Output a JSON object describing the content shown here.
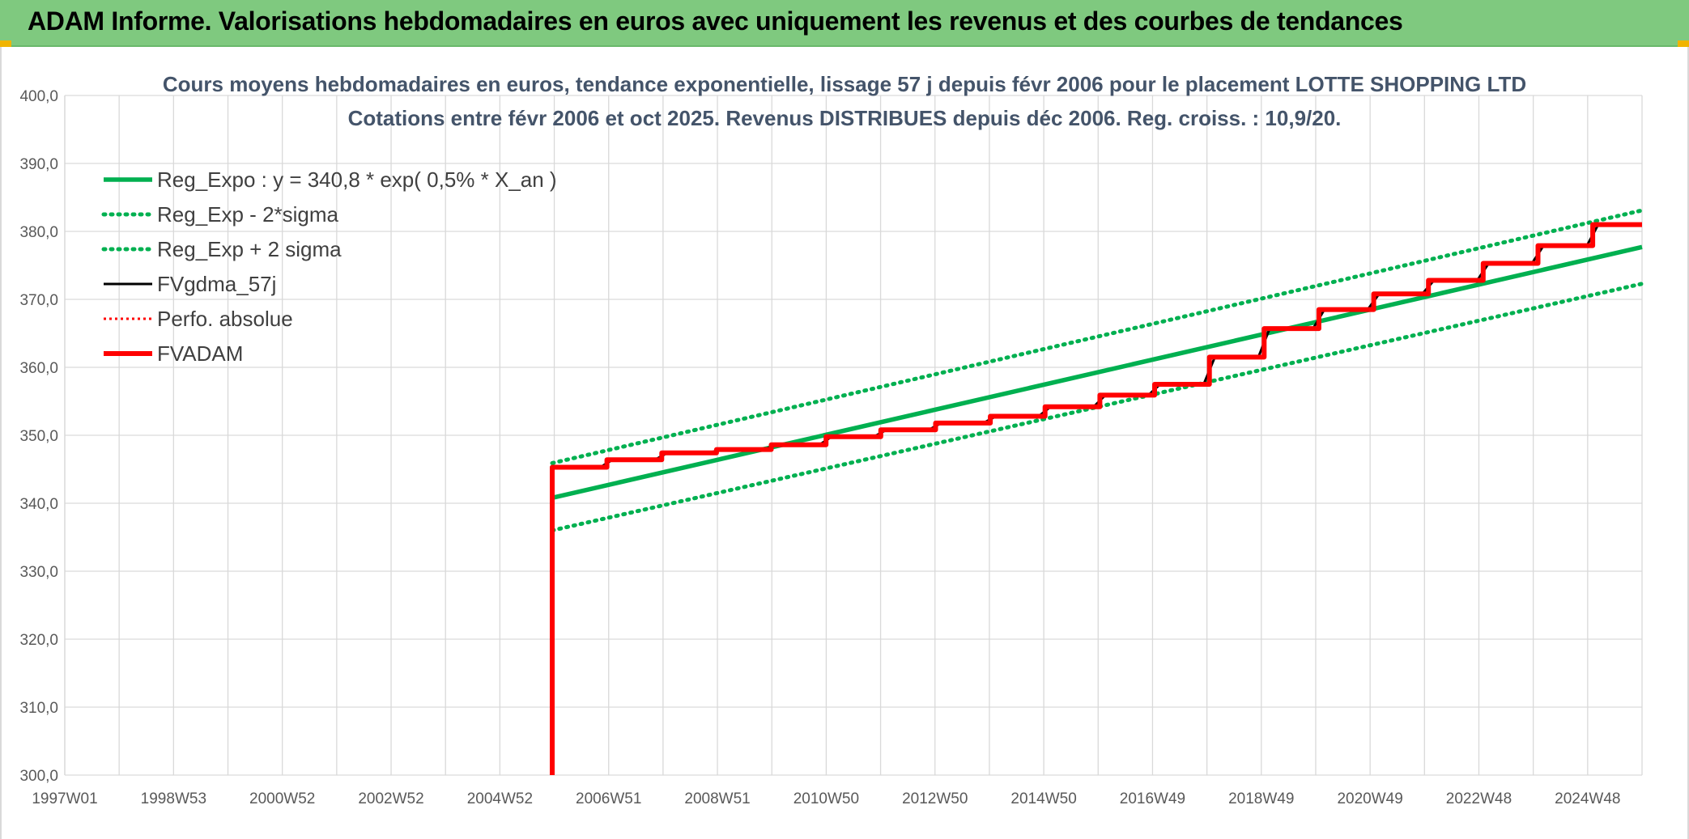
{
  "header": {
    "title": "ADAM Informe. Valorisations hebdomadaires en euros avec uniquement les revenus et des courbes de tendances",
    "background": "#7fc97f"
  },
  "chart_data": {
    "type": "line",
    "title": "Cours moyens hebdomadaires en euros, tendance exponentielle, lissage 57 j depuis févr 2006 pour le placement LOTTE SHOPPING LTD",
    "subtitle": "Cotations entre févr 2006 et oct 2025. Revenus DISTRIBUES depuis déc 2006. Reg. croiss. : 10,9/20.",
    "xlabel": "",
    "ylabel": "",
    "ylim": [
      300,
      400
    ],
    "xlim": [
      1997.0,
      2025.8
    ],
    "grid": true,
    "legend_position": "top-left",
    "y_ticks": [
      "400,0",
      "390,0",
      "380,0",
      "370,0",
      "360,0",
      "350,0",
      "340,0",
      "330,0",
      "320,0",
      "310,0",
      "300,0"
    ],
    "x_ticks": [
      "1997W01",
      "1998W53",
      "2000W52",
      "2002W52",
      "2004W52",
      "2006W51",
      "2008W51",
      "2010W50",
      "2012W50",
      "2014W50",
      "2016W49",
      "2018W49",
      "2020W49",
      "2022W48",
      "2024W48"
    ],
    "series": [
      {
        "name": "Reg_Expo : y = 340,8 * exp( 0,5% *  X_an )",
        "color": "#00b050",
        "style": "solid",
        "x": [
          2005.9,
          2025.8
        ],
        "y": [
          340.8,
          377.7
        ]
      },
      {
        "name": "Reg_Exp - 2*sigma",
        "color": "#00b050",
        "style": "dotted",
        "x": [
          2005.9,
          2025.8
        ],
        "y": [
          336.0,
          372.3
        ]
      },
      {
        "name": "Reg_Exp + 2 sigma",
        "color": "#00b050",
        "style": "dotted",
        "x": [
          2005.9,
          2025.8
        ],
        "y": [
          345.9,
          383.1
        ]
      },
      {
        "name": "FVgdma_57j",
        "color": "#000000",
        "style": "solid",
        "x": [
          2005.9,
          2006.8,
          2007.0,
          2007.8,
          2008.0,
          2008.8,
          2009.0,
          2009.8,
          2010.0,
          2010.8,
          2011.0,
          2011.8,
          2012.0,
          2012.8,
          2013.0,
          2013.8,
          2014.0,
          2014.8,
          2015.0,
          2015.8,
          2016.0,
          2016.8,
          2017.0,
          2017.8,
          2018.0,
          2018.8,
          2019.0,
          2019.8,
          2020.0,
          2020.8,
          2021.0,
          2021.8,
          2022.0,
          2022.8,
          2023.0,
          2023.8,
          2024.0,
          2024.8,
          2025.0,
          2025.8
        ],
        "y": [
          345.3,
          345.4,
          346.4,
          346.5,
          347.4,
          347.5,
          347.9,
          348.0,
          348.6,
          348.7,
          349.8,
          349.9,
          350.8,
          350.9,
          351.8,
          351.9,
          352.8,
          352.9,
          354.2,
          354.3,
          355.9,
          356.0,
          357.5,
          357.6,
          361.5,
          361.6,
          365.7,
          365.8,
          368.5,
          368.6,
          370.8,
          370.9,
          372.8,
          372.9,
          375.3,
          375.4,
          377.9,
          378.0,
          381.0,
          381.1
        ]
      },
      {
        "name": "Perfo. absolue",
        "color": "#ff0000",
        "style": "dotted",
        "x": [],
        "y": []
      },
      {
        "name": "FVADAM",
        "color": "#ff0000",
        "style": "solid",
        "x": [
          2005.9,
          2005.9,
          2006.9,
          2006.9,
          2007.9,
          2007.9,
          2008.9,
          2008.9,
          2009.9,
          2009.9,
          2010.9,
          2010.9,
          2011.9,
          2011.9,
          2012.9,
          2012.9,
          2013.9,
          2013.9,
          2014.9,
          2014.9,
          2015.9,
          2015.9,
          2016.9,
          2016.9,
          2017.9,
          2017.9,
          2018.9,
          2018.9,
          2019.9,
          2019.9,
          2020.9,
          2020.9,
          2021.9,
          2021.9,
          2022.9,
          2022.9,
          2023.9,
          2023.9,
          2024.9,
          2024.9,
          2025.8
        ],
        "y": [
          300.0,
          345.3,
          345.3,
          346.4,
          346.4,
          347.4,
          347.4,
          347.9,
          347.9,
          348.6,
          348.6,
          349.8,
          349.8,
          350.8,
          350.8,
          351.8,
          351.8,
          352.8,
          352.8,
          354.2,
          354.2,
          355.9,
          355.9,
          357.5,
          357.5,
          361.5,
          361.5,
          365.7,
          365.7,
          368.5,
          368.5,
          370.8,
          370.8,
          372.8,
          372.8,
          375.3,
          375.3,
          377.9,
          377.9,
          381.0,
          381.0
        ]
      }
    ]
  }
}
